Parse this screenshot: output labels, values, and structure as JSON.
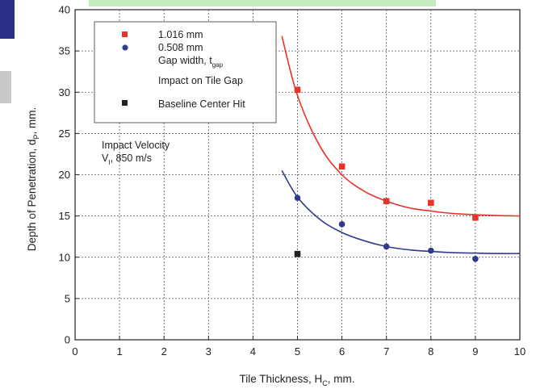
{
  "chart_data": {
    "type": "scatter",
    "xlabel": "Tile Thickness, H",
    "xlabel_sub": "C",
    "xlabel_unit": ", mm.",
    "ylabel": "Depth of Penetration, d",
    "ylabel_sub": "P",
    "ylabel_unit": ", mm.",
    "xlim": [
      0,
      10
    ],
    "ylim": [
      0,
      40
    ],
    "xticks": [
      "0",
      "1",
      "2",
      "3",
      "4",
      "5",
      "6",
      "7",
      "8",
      "9",
      "10"
    ],
    "yticks": [
      "0",
      "5",
      "10",
      "15",
      "20",
      "25",
      "30",
      "35",
      "40"
    ],
    "grid": true,
    "legend_position": "top-left",
    "series": [
      {
        "name": "1.016 mm",
        "marker": "square",
        "color": "#e8332a",
        "x": [
          5,
          6,
          7,
          8,
          9
        ],
        "y": [
          30.3,
          21.0,
          16.8,
          16.6,
          14.8
        ],
        "fit": {
          "x": [
            4.65,
            5,
            5.5,
            6,
            6.5,
            7,
            7.5,
            8,
            8.5,
            9,
            9.5,
            10
          ],
          "y": [
            36.8,
            29.6,
            23.5,
            20.0,
            18.0,
            16.8,
            16.0,
            15.6,
            15.3,
            15.15,
            15.05,
            15.0
          ]
        }
      },
      {
        "name": "0.508 mm",
        "marker": "circle",
        "color": "#2e3a8c",
        "x": [
          5,
          6,
          7,
          8,
          9
        ],
        "y": [
          17.2,
          14.0,
          11.3,
          10.8,
          9.8
        ],
        "fit": {
          "x": [
            4.65,
            5,
            5.5,
            6,
            6.5,
            7,
            7.5,
            8,
            8.5,
            9,
            9.5,
            10
          ],
          "y": [
            20.5,
            17.3,
            14.6,
            13.0,
            12.0,
            11.3,
            10.9,
            10.7,
            10.55,
            10.5,
            10.45,
            10.45
          ]
        }
      },
      {
        "name": "Baseline Center Hit",
        "marker": "square",
        "color": "#222222",
        "x": [
          5
        ],
        "y": [
          10.4
        ]
      }
    ],
    "legend": {
      "items": [
        "1.016 mm",
        "0.508 mm"
      ],
      "gap_label": "Gap width, t",
      "gap_sub": "gap",
      "impact_label": "Impact on Tile Gap",
      "baseline_label": "Baseline Center Hit"
    },
    "annotation": {
      "line1": "Impact Velocity",
      "line2_prefix": "V",
      "line2_sub": "I",
      "line2_rest": ", 850 m/s"
    }
  }
}
